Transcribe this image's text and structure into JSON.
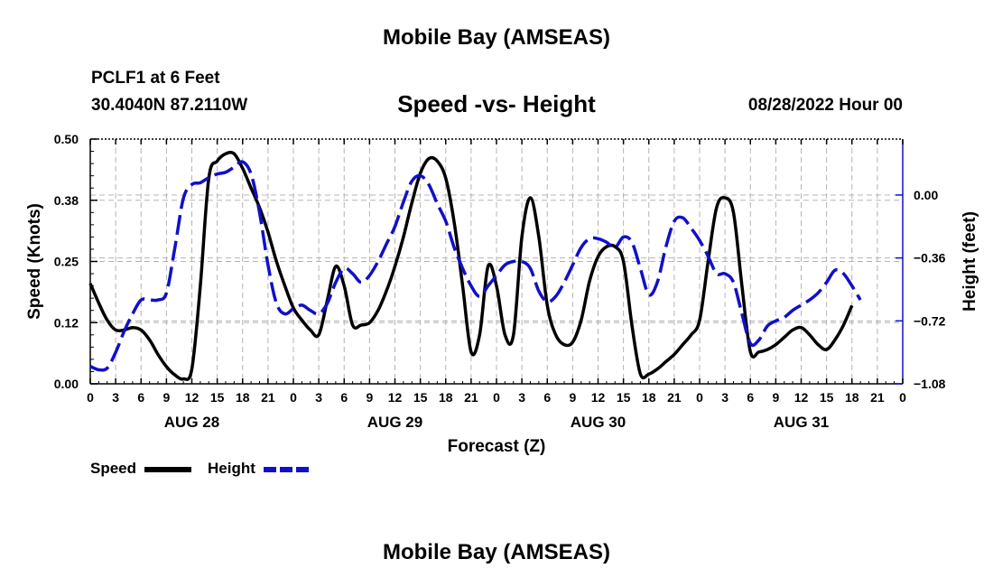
{
  "header": {
    "title": "Mobile Bay (AMSEAS)",
    "station": "PCLF1 at 6 Feet",
    "coords": "30.4040N  87.2110W",
    "subtitle": "Speed -vs- Height",
    "datetime": "08/28/2022 Hour 00"
  },
  "footer": {
    "title": "Mobile Bay (AMSEAS)"
  },
  "legend": {
    "speed_label": "Speed",
    "height_label": "Height",
    "speed_color": "#000000",
    "height_color": "#1010c8"
  },
  "chart_data": {
    "type": "line",
    "title": "Speed -vs- Height",
    "xlabel": "Forecast (Z)",
    "ylabel": "Speed (Knots)",
    "y2label": "Height (feet)",
    "xlim": [
      0,
      96
    ],
    "ylim": [
      0,
      0.5
    ],
    "y2lim": [
      -1.08,
      0.32
    ],
    "y_ticks": [
      "0.00",
      "0.12",
      "0.25",
      "0.38",
      "0.50"
    ],
    "y_tick_values": [
      0,
      0.125,
      0.25,
      0.375,
      0.5
    ],
    "y2_ticks": [
      "0.00",
      "−0.36",
      "−0.72",
      "−1.08"
    ],
    "y2_tick_values": [
      0,
      -0.36,
      -0.72,
      -1.08
    ],
    "x_tick_labels": [
      "0",
      "3",
      "6",
      "9",
      "12",
      "15",
      "18",
      "21",
      "0",
      "3",
      "6",
      "9",
      "12",
      "15",
      "18",
      "21",
      "0",
      "3",
      "6",
      "9",
      "12",
      "15",
      "18",
      "21",
      "0",
      "3",
      "6",
      "9",
      "12",
      "15",
      "18",
      "21",
      "0"
    ],
    "day_labels": [
      {
        "label": "AUG 28",
        "hour": 12
      },
      {
        "label": "AUG 29",
        "hour": 36
      },
      {
        "label": "AUG 30",
        "hour": 60
      },
      {
        "label": "AUG 31",
        "hour": 84
      }
    ],
    "series": [
      {
        "name": "Speed",
        "axis": "left",
        "color": "#000000",
        "dash": "solid",
        "points": [
          [
            0,
            0.205
          ],
          [
            1,
            0.165
          ],
          [
            2,
            0.13
          ],
          [
            3,
            0.11
          ],
          [
            4,
            0.11
          ],
          [
            5,
            0.115
          ],
          [
            6,
            0.11
          ],
          [
            7,
            0.09
          ],
          [
            8,
            0.06
          ],
          [
            9,
            0.035
          ],
          [
            10,
            0.018
          ],
          [
            11,
            0.01
          ],
          [
            12,
            0.03
          ],
          [
            13,
            0.2
          ],
          [
            14,
            0.42
          ],
          [
            15,
            0.455
          ],
          [
            16,
            0.47
          ],
          [
            17,
            0.47
          ],
          [
            18,
            0.44
          ],
          [
            19,
            0.4
          ],
          [
            20,
            0.36
          ],
          [
            21,
            0.31
          ],
          [
            22,
            0.25
          ],
          [
            23,
            0.2
          ],
          [
            24,
            0.155
          ],
          [
            25,
            0.13
          ],
          [
            26,
            0.11
          ],
          [
            27,
            0.1
          ],
          [
            28,
            0.17
          ],
          [
            29,
            0.24
          ],
          [
            30,
            0.2
          ],
          [
            31,
            0.12
          ],
          [
            32,
            0.12
          ],
          [
            33,
            0.125
          ],
          [
            34,
            0.15
          ],
          [
            35,
            0.19
          ],
          [
            36,
            0.24
          ],
          [
            37,
            0.3
          ],
          [
            38,
            0.37
          ],
          [
            39,
            0.43
          ],
          [
            40,
            0.46
          ],
          [
            41,
            0.455
          ],
          [
            42,
            0.42
          ],
          [
            43,
            0.33
          ],
          [
            44,
            0.2
          ],
          [
            45,
            0.065
          ],
          [
            46,
            0.1
          ],
          [
            47,
            0.24
          ],
          [
            48,
            0.2
          ],
          [
            49,
            0.1
          ],
          [
            50,
            0.1
          ],
          [
            51,
            0.3
          ],
          [
            52,
            0.38
          ],
          [
            53,
            0.3
          ],
          [
            54,
            0.16
          ],
          [
            55,
            0.1
          ],
          [
            56,
            0.08
          ],
          [
            57,
            0.085
          ],
          [
            58,
            0.13
          ],
          [
            59,
            0.21
          ],
          [
            60,
            0.26
          ],
          [
            61,
            0.28
          ],
          [
            62,
            0.28
          ],
          [
            63,
            0.25
          ],
          [
            64,
            0.12
          ],
          [
            65,
            0.02
          ],
          [
            66,
            0.02
          ],
          [
            67,
            0.03
          ],
          [
            68,
            0.045
          ],
          [
            69,
            0.06
          ],
          [
            70,
            0.08
          ],
          [
            71,
            0.1
          ],
          [
            72,
            0.13
          ],
          [
            73,
            0.25
          ],
          [
            74,
            0.36
          ],
          [
            75,
            0.38
          ],
          [
            76,
            0.35
          ],
          [
            77,
            0.2
          ],
          [
            78,
            0.065
          ],
          [
            79,
            0.065
          ],
          [
            80,
            0.07
          ],
          [
            81,
            0.08
          ],
          [
            82,
            0.095
          ],
          [
            83,
            0.11
          ],
          [
            84,
            0.115
          ],
          [
            85,
            0.1
          ],
          [
            86,
            0.08
          ],
          [
            87,
            0.07
          ],
          [
            88,
            0.09
          ],
          [
            89,
            0.12
          ],
          [
            90,
            0.16
          ]
        ]
      },
      {
        "name": "Height",
        "axis": "right",
        "color": "#1010c8",
        "dash": "dashed",
        "points": [
          [
            0,
            -0.98
          ],
          [
            1,
            -1.0
          ],
          [
            2,
            -0.99
          ],
          [
            3,
            -0.9
          ],
          [
            4,
            -0.78
          ],
          [
            5,
            -0.68
          ],
          [
            6,
            -0.6
          ],
          [
            7,
            -0.6
          ],
          [
            8,
            -0.6
          ],
          [
            9,
            -0.56
          ],
          [
            10,
            -0.3
          ],
          [
            11,
            -0.02
          ],
          [
            12,
            0.06
          ],
          [
            13,
            0.07
          ],
          [
            14,
            0.1
          ],
          [
            15,
            0.12
          ],
          [
            16,
            0.13
          ],
          [
            17,
            0.16
          ],
          [
            18,
            0.19
          ],
          [
            19,
            0.12
          ],
          [
            20,
            -0.1
          ],
          [
            21,
            -0.4
          ],
          [
            22,
            -0.62
          ],
          [
            23,
            -0.68
          ],
          [
            24,
            -0.65
          ],
          [
            25,
            -0.63
          ],
          [
            26,
            -0.66
          ],
          [
            27,
            -0.68
          ],
          [
            28,
            -0.62
          ],
          [
            29,
            -0.5
          ],
          [
            30,
            -0.42
          ],
          [
            31,
            -0.45
          ],
          [
            32,
            -0.5
          ],
          [
            33,
            -0.46
          ],
          [
            34,
            -0.38
          ],
          [
            35,
            -0.28
          ],
          [
            36,
            -0.18
          ],
          [
            37,
            -0.04
          ],
          [
            38,
            0.08
          ],
          [
            39,
            0.11
          ],
          [
            40,
            0.06
          ],
          [
            41,
            -0.05
          ],
          [
            42,
            -0.15
          ],
          [
            43,
            -0.3
          ],
          [
            44,
            -0.42
          ],
          [
            45,
            -0.52
          ],
          [
            46,
            -0.58
          ],
          [
            47,
            -0.52
          ],
          [
            48,
            -0.46
          ],
          [
            49,
            -0.4
          ],
          [
            50,
            -0.38
          ],
          [
            51,
            -0.38
          ],
          [
            52,
            -0.42
          ],
          [
            53,
            -0.55
          ],
          [
            54,
            -0.61
          ],
          [
            55,
            -0.58
          ],
          [
            56,
            -0.5
          ],
          [
            57,
            -0.4
          ],
          [
            58,
            -0.3
          ],
          [
            59,
            -0.25
          ],
          [
            60,
            -0.25
          ],
          [
            61,
            -0.27
          ],
          [
            62,
            -0.3
          ],
          [
            63,
            -0.24
          ],
          [
            64,
            -0.27
          ],
          [
            65,
            -0.42
          ],
          [
            66,
            -0.57
          ],
          [
            67,
            -0.5
          ],
          [
            68,
            -0.3
          ],
          [
            69,
            -0.15
          ],
          [
            70,
            -0.13
          ],
          [
            71,
            -0.19
          ],
          [
            72,
            -0.26
          ],
          [
            73,
            -0.35
          ],
          [
            74,
            -0.45
          ],
          [
            75,
            -0.45
          ],
          [
            76,
            -0.5
          ],
          [
            77,
            -0.68
          ],
          [
            78,
            -0.85
          ],
          [
            79,
            -0.83
          ],
          [
            80,
            -0.75
          ],
          [
            81,
            -0.72
          ],
          [
            82,
            -0.7
          ],
          [
            83,
            -0.66
          ],
          [
            84,
            -0.63
          ],
          [
            85,
            -0.6
          ],
          [
            86,
            -0.56
          ],
          [
            87,
            -0.5
          ],
          [
            88,
            -0.43
          ],
          [
            89,
            -0.45
          ],
          [
            90,
            -0.52
          ],
          [
            91,
            -0.6
          ]
        ]
      }
    ]
  }
}
